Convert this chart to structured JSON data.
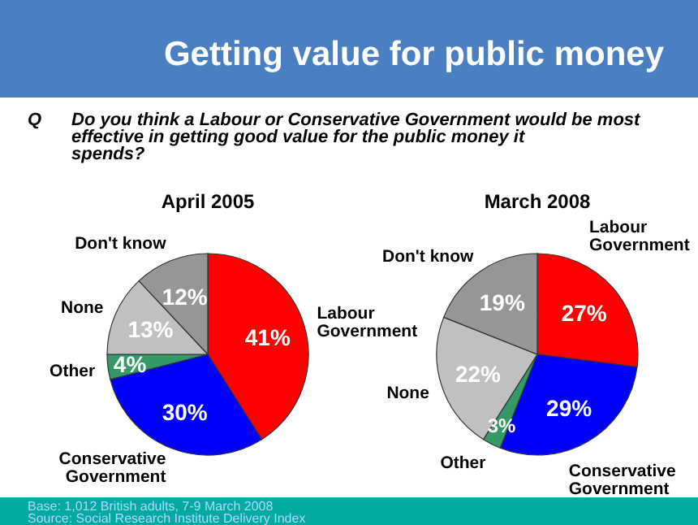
{
  "chart_data": [
    {
      "type": "other",
      "title": "Getting value for public money",
      "subtitle": "Do you think a Labour or Conservative Government would be most effective in getting good value for the public money it spends?",
      "annotations": [
        "Q",
        "Base:   1,012  British adults,  7-9 March 2008",
        "Source:   Social Research Institute Delivery Index"
      ]
    },
    {
      "type": "pie",
      "title": "April 2005",
      "categories": [
        "Labour Government",
        "Conservative Government",
        "Other",
        "None",
        "Don't know"
      ],
      "values": [
        41,
        30,
        4,
        13,
        12
      ],
      "value_labels": [
        "41%",
        "30%",
        "4%",
        "13%",
        "12%"
      ],
      "colors": [
        "#ff0000",
        "#0000ff",
        "#339966",
        "#c0c0c0",
        "#969696"
      ]
    },
    {
      "type": "pie",
      "title": "March 2008",
      "categories": [
        "Labour Government",
        "Conservative Government",
        "Other",
        "None",
        "Don't know"
      ],
      "values": [
        27,
        29,
        3,
        22,
        19
      ],
      "value_labels": [
        "27%",
        "29%",
        "3%",
        "22%",
        "19%"
      ],
      "colors": [
        "#ff0000",
        "#0000ff",
        "#339966",
        "#c0c0c0",
        "#969696"
      ]
    }
  ]
}
